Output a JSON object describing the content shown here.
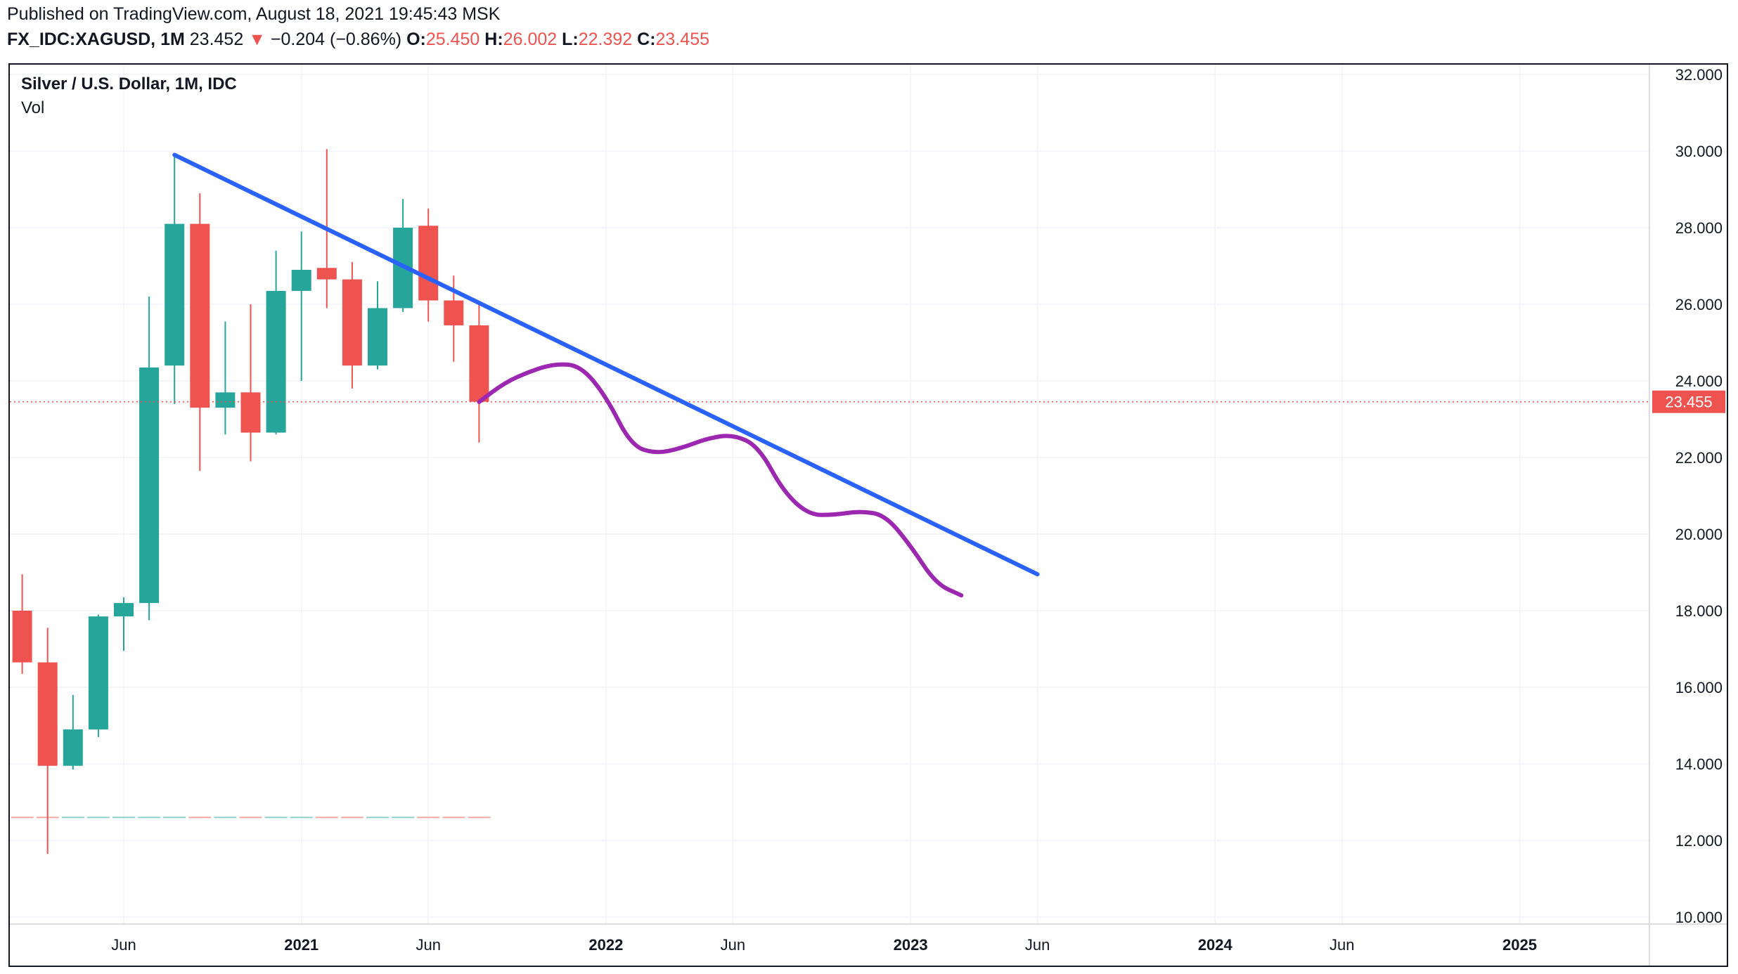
{
  "header": {
    "published": "Published on TradingView.com, August 18, 2021 19:45:43 MSK",
    "symbol": "FX_IDC:XAGUSD, 1M",
    "last": "23.452",
    "down_arrow": "▼",
    "change": "−0.204 (−0.86%)",
    "o_label": "O:",
    "o_value": "25.450",
    "h_label": "H:",
    "h_value": "26.002",
    "l_label": "L:",
    "l_value": "22.392",
    "c_label": "C:",
    "c_value": "23.455"
  },
  "legend": {
    "title": "Silver / U.S. Dollar, 1M, IDC",
    "vol": "Vol"
  },
  "chart_data": {
    "type": "candlestick",
    "title": "Silver / U.S. Dollar, 1M, IDC",
    "x_axis": {
      "unit": "month",
      "range": [
        "2020-01",
        "2025-07"
      ],
      "ticks": [
        {
          "date": "2020-06",
          "label": "Jun",
          "bold": false
        },
        {
          "date": "2021-01",
          "label": "2021",
          "bold": true
        },
        {
          "date": "2021-06",
          "label": "Jun",
          "bold": false
        },
        {
          "date": "2022-01",
          "label": "2022",
          "bold": true
        },
        {
          "date": "2022-06",
          "label": "Jun",
          "bold": false
        },
        {
          "date": "2023-01",
          "label": "2023",
          "bold": true
        },
        {
          "date": "2023-06",
          "label": "Jun",
          "bold": false
        },
        {
          "date": "2024-01",
          "label": "2024",
          "bold": true
        },
        {
          "date": "2024-06",
          "label": "Jun",
          "bold": false
        },
        {
          "date": "2025-01",
          "label": "2025",
          "bold": true
        }
      ]
    },
    "y_axis": {
      "range": [
        9.8,
        32.3
      ],
      "position": "right",
      "ticks": [
        "10.000",
        "12.000",
        "14.000",
        "16.000",
        "18.000",
        "20.000",
        "22.000",
        "24.000",
        "26.000",
        "28.000",
        "30.000",
        "32.000"
      ]
    },
    "candles": [
      {
        "date": "2020-02",
        "o": 18.0,
        "h": 18.95,
        "l": 16.35,
        "c": 16.65
      },
      {
        "date": "2020-03",
        "o": 16.65,
        "h": 17.55,
        "l": 11.65,
        "c": 13.95
      },
      {
        "date": "2020-04",
        "o": 13.95,
        "h": 15.8,
        "l": 13.85,
        "c": 14.9
      },
      {
        "date": "2020-05",
        "o": 14.9,
        "h": 17.9,
        "l": 14.7,
        "c": 17.85
      },
      {
        "date": "2020-06",
        "o": 17.85,
        "h": 18.35,
        "l": 16.95,
        "c": 18.2
      },
      {
        "date": "2020-07",
        "o": 18.2,
        "h": 26.2,
        "l": 17.75,
        "c": 24.35
      },
      {
        "date": "2020-08",
        "o": 24.4,
        "h": 29.85,
        "l": 23.4,
        "c": 28.1
      },
      {
        "date": "2020-09",
        "o": 28.1,
        "h": 28.9,
        "l": 21.65,
        "c": 23.3
      },
      {
        "date": "2020-10",
        "o": 23.3,
        "h": 25.55,
        "l": 22.6,
        "c": 23.7
      },
      {
        "date": "2020-11",
        "o": 23.7,
        "h": 26.0,
        "l": 21.9,
        "c": 22.65
      },
      {
        "date": "2020-12",
        "o": 22.65,
        "h": 27.4,
        "l": 22.6,
        "c": 26.35
      },
      {
        "date": "2021-01",
        "o": 26.35,
        "h": 27.9,
        "l": 24.0,
        "c": 26.9
      },
      {
        "date": "2021-02",
        "o": 26.95,
        "h": 30.05,
        "l": 25.9,
        "c": 26.65
      },
      {
        "date": "2021-03",
        "o": 26.65,
        "h": 27.1,
        "l": 23.8,
        "c": 24.4
      },
      {
        "date": "2021-04",
        "o": 24.4,
        "h": 26.6,
        "l": 24.3,
        "c": 25.9
      },
      {
        "date": "2021-05",
        "o": 25.9,
        "h": 28.75,
        "l": 25.8,
        "c": 28.0
      },
      {
        "date": "2021-06",
        "o": 28.05,
        "h": 28.5,
        "l": 25.55,
        "c": 26.1
      },
      {
        "date": "2021-07",
        "o": 26.1,
        "h": 26.75,
        "l": 24.5,
        "c": 25.45
      },
      {
        "date": "2021-08",
        "o": 25.45,
        "h": 26.0,
        "l": 22.39,
        "c": 23.455
      }
    ],
    "last_price": {
      "value": 23.455,
      "label": "23.455"
    },
    "volume_bars_level": 12.6,
    "trendline": {
      "color": "#2962ff",
      "from": {
        "date": "2020-08",
        "y": 29.9
      },
      "to": {
        "date": "2023-06",
        "y": 18.95
      }
    },
    "drawn_path": {
      "color": "#9c27b0",
      "points": [
        [
          "2021-08",
          23.45
        ],
        [
          "2021-09",
          23.95
        ],
        [
          "2021-10",
          24.25
        ],
        [
          "2021-11",
          24.45
        ],
        [
          "2021-12",
          24.4
        ],
        [
          "2022-01",
          23.6
        ],
        [
          "2022-02",
          22.3
        ],
        [
          "2022-03",
          22.1
        ],
        [
          "2022-04",
          22.25
        ],
        [
          "2022-05",
          22.5
        ],
        [
          "2022-06",
          22.6
        ],
        [
          "2022-07",
          22.3
        ],
        [
          "2022-08",
          21.1
        ],
        [
          "2022-09",
          20.5
        ],
        [
          "2022-10",
          20.5
        ],
        [
          "2022-11",
          20.6
        ],
        [
          "2022-12",
          20.5
        ],
        [
          "2023-01",
          19.7
        ],
        [
          "2023-02",
          18.7
        ],
        [
          "2023-03",
          18.4
        ]
      ]
    },
    "colors": {
      "up": "#26a69a",
      "down": "#ef5350",
      "grid": "#f0f3fa",
      "axis_text": "#131722"
    }
  }
}
